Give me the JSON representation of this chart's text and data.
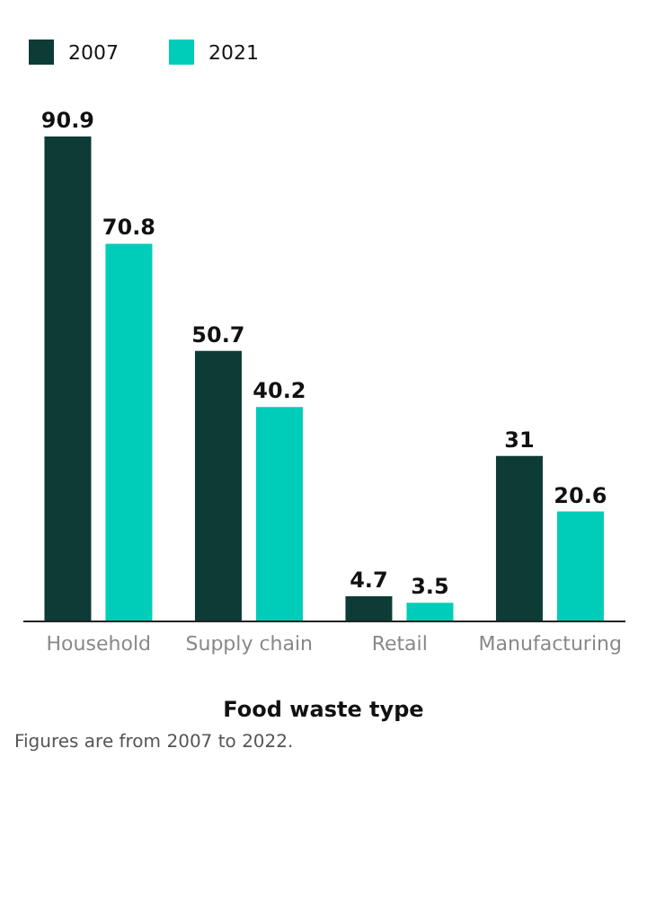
{
  "chart_data": {
    "type": "bar",
    "categories": [
      "Household",
      "Supply chain",
      "Retail",
      "Manufacturing"
    ],
    "series": [
      {
        "name": "2007",
        "color": "#0d3b36",
        "values": [
          90.9,
          50.7,
          4.7,
          31
        ]
      },
      {
        "name": "2021",
        "color": "#00cdb9",
        "values": [
          70.8,
          40.2,
          3.5,
          20.6
        ]
      }
    ],
    "xlabel": "Food waste type",
    "annotations": [
      "Figures are from 2007 to 2022."
    ],
    "tick_labels": "x",
    "legend": "top left",
    "data_labels": true
  }
}
